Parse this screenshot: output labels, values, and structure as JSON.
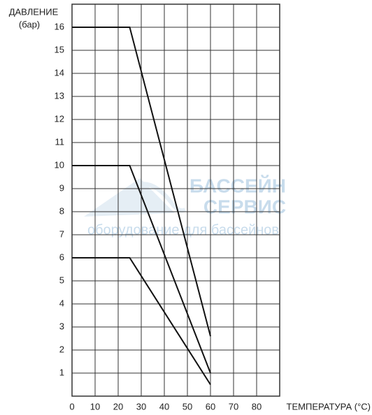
{
  "chart_data": {
    "type": "line",
    "y_label": "ДАВЛЕНИЕ",
    "y_unit": "(бар)",
    "x_label": "ТЕМПЕРАТУРА (°С)",
    "watermark": [
      "БАССЕЙН",
      "СЕРВИС",
      "оборудование для бассейнов"
    ],
    "x": [
      0,
      25,
      60
    ],
    "series": [
      {
        "color": "#111111",
        "values": [
          16,
          16,
          2.6
        ]
      },
      {
        "color": "#111111",
        "values": [
          10,
          10,
          1
        ]
      },
      {
        "color": "#111111",
        "values": [
          6,
          6,
          0.5
        ]
      }
    ],
    "xlim": [
      0,
      90
    ],
    "xticks": [
      0,
      10,
      20,
      30,
      40,
      50,
      60,
      70,
      80
    ],
    "ylim": [
      0,
      17
    ],
    "yticks": [
      1,
      2,
      3,
      4,
      5,
      6,
      7,
      8,
      9,
      10,
      11,
      12,
      13,
      14,
      15,
      16
    ],
    "grid": true
  }
}
